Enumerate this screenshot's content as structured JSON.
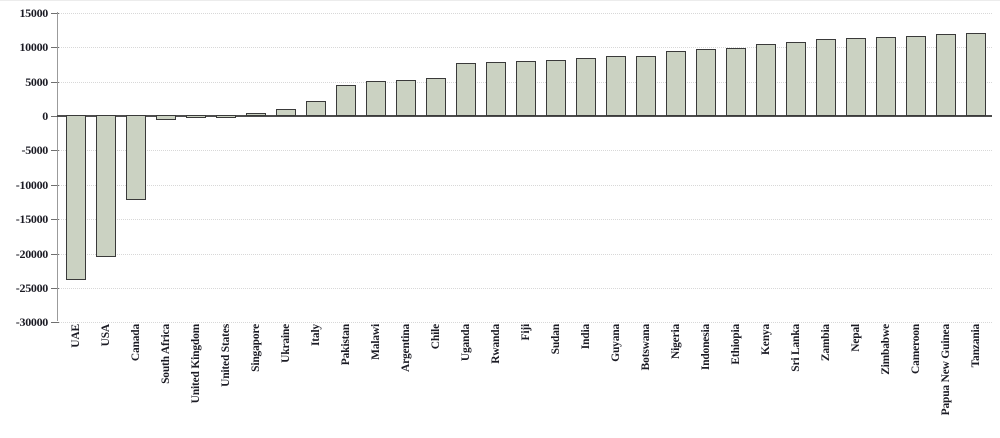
{
  "chart_data": {
    "type": "bar",
    "title": "",
    "xlabel": "",
    "ylabel": "",
    "categories": [
      "UAE",
      "USA",
      "Canada",
      "South Africa",
      "United Kingdom",
      "United States",
      "Singapore",
      "Ukraine",
      "Italy",
      "Pakistan",
      "Malawi",
      "Argentina",
      "Chile",
      "Uganda",
      "Rwanda",
      "Fiji",
      "Sudan",
      "India",
      "Guyana",
      "Botswana",
      "Nigeria",
      "Indonesia",
      "Ethiopia",
      "Kenya",
      "Sri Lanka",
      "Zambia",
      "Nepal",
      "Zimbabwe",
      "Cameroon",
      "Papua New Guinea",
      "Tanzania"
    ],
    "values": [
      -24050,
      -20650,
      -12400,
      -750,
      -300,
      -150,
      500,
      1050,
      2150,
      4450,
      5050,
      5200,
      5500,
      7650,
      7850,
      8050,
      8200,
      8400,
      8650,
      8750,
      9400,
      9700,
      9850,
      10450,
      10750,
      11250,
      11400,
      11550,
      11600,
      11950,
      12100
    ],
    "ylim": [
      -30000,
      15000
    ],
    "ytick_step": 5000,
    "ytick_labels": [
      "15000",
      "10000",
      "5000",
      "0",
      "-5000",
      "-10000",
      "-15000",
      "-20000",
      "-25000",
      "-30000"
    ],
    "legend": "none",
    "grid": "horizontal-dotted",
    "x_label_rotation": "bottom-to-top",
    "colors": {
      "bar_fill": "#cbd2c2",
      "bar_border": "#3a3a3a",
      "zero_axis": "#4d4d4d",
      "y_axis": "#9b9b9b",
      "gridline": "#d8d8d8",
      "label_text": "#1b1b24",
      "background": "#ffffff"
    }
  }
}
